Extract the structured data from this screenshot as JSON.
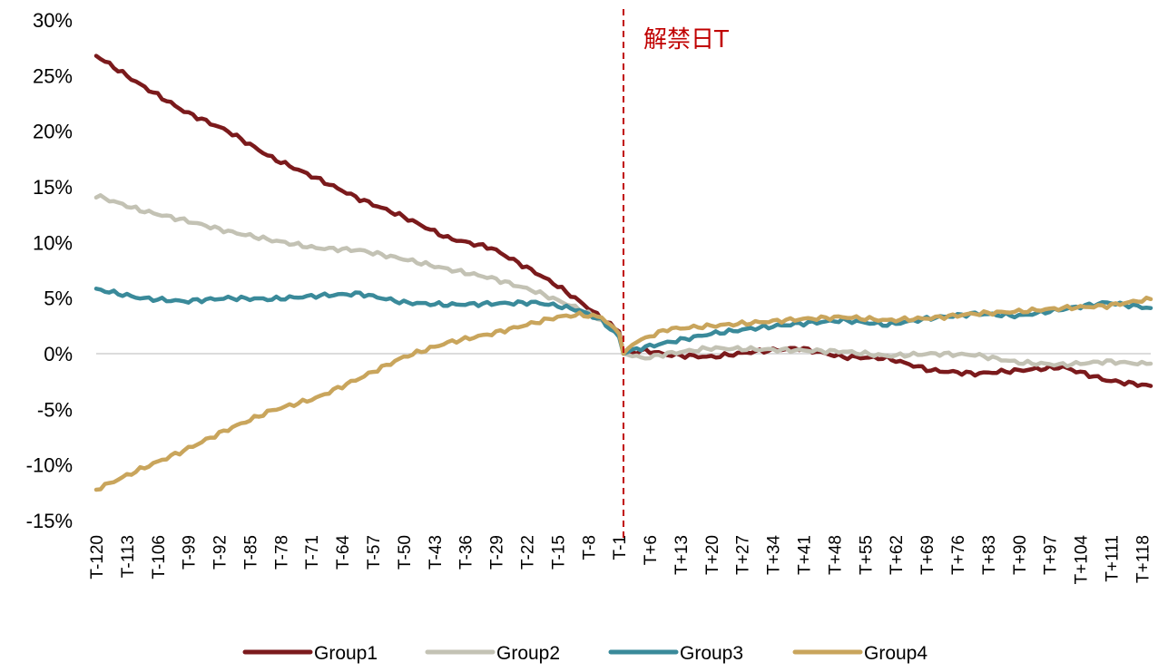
{
  "chart_data": {
    "type": "line",
    "title": "",
    "xlabel": "",
    "ylabel": "",
    "x_range": [
      -120,
      120
    ],
    "ylim": [
      -15,
      30
    ],
    "y_ticks": [
      30,
      25,
      20,
      15,
      10,
      5,
      0,
      -5,
      -10,
      -15
    ],
    "y_tick_labels": [
      "30%",
      "25%",
      "20%",
      "15%",
      "10%",
      "5%",
      "0%",
      "-5%",
      "-10%",
      "-15%"
    ],
    "x_tick_labels": [
      "T-120",
      "T-113",
      "T-106",
      "T-99",
      "T-92",
      "T-85",
      "T-78",
      "T-71",
      "T-64",
      "T-57",
      "T-50",
      "T-43",
      "T-36",
      "T-29",
      "T-22",
      "T-15",
      "T-8",
      "T-1",
      "T+6",
      "T+13",
      "T+20",
      "T+27",
      "T+34",
      "T+41",
      "T+48",
      "T+55",
      "T+62",
      "T+69",
      "T+76",
      "T+83",
      "T+90",
      "T+97",
      "T+104",
      "T+111",
      "T+118"
    ],
    "grid": false,
    "annotation": {
      "label": "解禁日T",
      "x": 0,
      "color": "#c00000"
    },
    "legend_position": "bottom",
    "series": [
      {
        "name": "Group1",
        "color": "#7b1a1c",
        "x": [
          -120,
          -110,
          -100,
          -90,
          -80,
          -70,
          -60,
          -50,
          -40,
          -30,
          -20,
          -15,
          -10,
          -5,
          -1,
          0,
          2,
          5,
          10,
          20,
          30,
          40,
          50,
          60,
          70,
          80,
          90,
          100,
          110,
          118,
          120
        ],
        "values": [
          26.8,
          24.2,
          21.8,
          20.0,
          17.6,
          15.8,
          13.9,
          12.3,
          10.4,
          9.5,
          7.3,
          6.1,
          4.7,
          3.2,
          2.0,
          0.0,
          0.1,
          0.3,
          -0.1,
          -0.3,
          0.2,
          0.5,
          -0.3,
          -0.4,
          -1.5,
          -1.8,
          -1.5,
          -1.2,
          -2.4,
          -2.8,
          -2.9
        ]
      },
      {
        "name": "Group2",
        "color": "#c3c2b4",
        "x": [
          -120,
          -110,
          -100,
          -90,
          -80,
          -70,
          -60,
          -50,
          -40,
          -30,
          -20,
          -15,
          -10,
          -5,
          -1,
          0,
          2,
          5,
          10,
          20,
          30,
          40,
          50,
          60,
          70,
          80,
          90,
          100,
          110,
          118,
          120
        ],
        "values": [
          14.2,
          12.9,
          12.0,
          11.0,
          10.2,
          9.5,
          9.3,
          8.5,
          7.6,
          6.8,
          5.6,
          4.8,
          4.0,
          3.0,
          1.8,
          0.0,
          -0.2,
          -0.4,
          0.0,
          0.5,
          0.4,
          0.3,
          0.2,
          -0.2,
          0.0,
          -0.1,
          -0.8,
          -1.0,
          -0.7,
          -0.9,
          -0.9
        ]
      },
      {
        "name": "Group3",
        "color": "#3a8a9a",
        "x": [
          -120,
          -110,
          -100,
          -90,
          -80,
          -70,
          -60,
          -50,
          -40,
          -30,
          -20,
          -15,
          -10,
          -5,
          -1,
          0,
          2,
          5,
          10,
          20,
          30,
          40,
          50,
          60,
          70,
          80,
          90,
          100,
          110,
          118,
          120
        ],
        "values": [
          5.8,
          5.0,
          4.7,
          5.0,
          4.9,
          5.2,
          5.4,
          4.6,
          4.4,
          4.5,
          4.6,
          4.3,
          3.9,
          3.0,
          1.5,
          0.0,
          0.3,
          0.6,
          1.0,
          1.8,
          2.3,
          2.7,
          3.0,
          2.6,
          3.2,
          3.6,
          3.4,
          4.0,
          4.6,
          4.2,
          4.1
        ]
      },
      {
        "name": "Group4",
        "color": "#c9a55c",
        "x": [
          -120,
          -110,
          -100,
          -90,
          -80,
          -70,
          -60,
          -50,
          -40,
          -30,
          -20,
          -15,
          -10,
          -5,
          -1,
          0,
          2,
          5,
          10,
          20,
          30,
          40,
          50,
          60,
          70,
          80,
          90,
          100,
          110,
          118,
          120
        ],
        "values": [
          -12.2,
          -10.4,
          -8.7,
          -6.8,
          -5.1,
          -4.0,
          -2.2,
          -0.3,
          1.0,
          1.8,
          2.8,
          3.3,
          3.5,
          3.3,
          1.8,
          0.0,
          0.9,
          1.4,
          2.2,
          2.5,
          2.8,
          3.1,
          3.3,
          3.0,
          3.2,
          3.6,
          3.8,
          4.1,
          4.3,
          4.8,
          4.9
        ]
      }
    ]
  }
}
